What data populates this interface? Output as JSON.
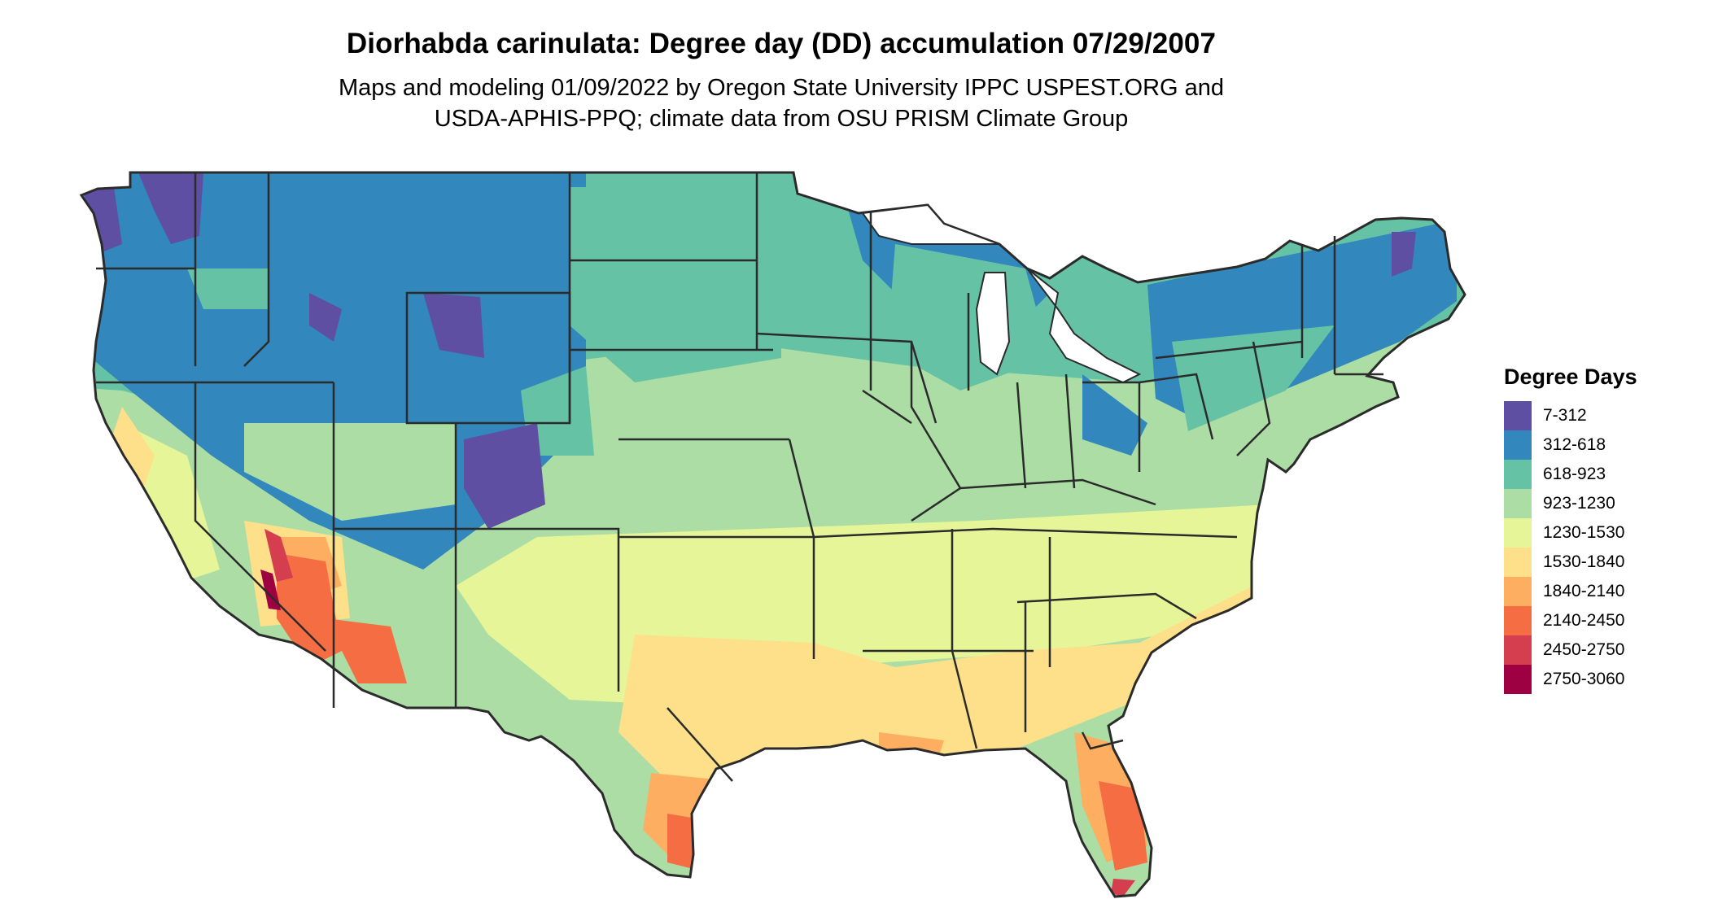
{
  "title": "Diorhabda carinulata: Degree day (DD) accumulation 07/29/2007",
  "subtitle_line1": "Maps and modeling 01/09/2022 by Oregon State University IPPC USPEST.ORG and",
  "subtitle_line2": "USDA-APHIS-PPQ; climate data from OSU PRISM Climate Group",
  "legend": {
    "title": "Degree Days",
    "items": [
      {
        "label": "7-312",
        "color": "#5e4fa2"
      },
      {
        "label": "312-618",
        "color": "#3288bd"
      },
      {
        "label": "618-923",
        "color": "#66c2a5"
      },
      {
        "label": "923-1230",
        "color": "#abdda4"
      },
      {
        "label": "1230-1530",
        "color": "#e6f598"
      },
      {
        "label": "1530-1840",
        "color": "#fee08b"
      },
      {
        "label": "1840-2140",
        "color": "#fdae61"
      },
      {
        "label": "2140-2450",
        "color": "#f46d43"
      },
      {
        "label": "2450-2750",
        "color": "#d53e4f"
      },
      {
        "label": "2750-3060",
        "color": "#9e0142"
      }
    ]
  },
  "map": {
    "border_color": "#2b2b2b"
  }
}
